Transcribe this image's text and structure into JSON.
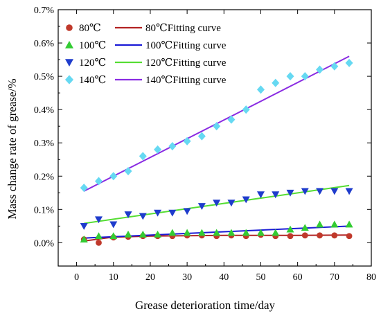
{
  "chart_data": {
    "type": "scatter",
    "xlabel": "Grease deterioration time/day",
    "ylabel": "Mass change rate of grease/%",
    "xlim": [
      -5,
      80
    ],
    "ylim": [
      -0.0007,
      0.007
    ],
    "xticks": [
      0,
      10,
      20,
      30,
      40,
      50,
      60,
      70,
      80
    ],
    "yticks": [
      0.0,
      0.001,
      0.002,
      0.003,
      0.004,
      0.005,
      0.006,
      0.007
    ],
    "yticklabels": [
      "0.0%",
      "0.1%",
      "0.2%",
      "0.3%",
      "0.4%",
      "0.5%",
      "0.6%",
      "0.7%"
    ],
    "legend_placement": "top-left",
    "series": [
      {
        "name": "80℃",
        "marker": "circle",
        "color": "#c0392b",
        "x": [
          2,
          6,
          10,
          14,
          18,
          22,
          26,
          30,
          34,
          38,
          42,
          46,
          50,
          54,
          58,
          62,
          66,
          70,
          74
        ],
        "y": [
          0.0001,
          0.0,
          0.00016,
          0.00018,
          0.0002,
          0.0002,
          0.0002,
          0.00022,
          0.00022,
          0.0002,
          0.00022,
          0.0002,
          0.00024,
          0.0002,
          0.0002,
          0.00022,
          0.00022,
          0.00022,
          0.0002
        ]
      },
      {
        "name": "100℃",
        "marker": "triangle-up",
        "color": "#33cc33",
        "x": [
          2,
          6,
          10,
          14,
          18,
          22,
          26,
          30,
          34,
          38,
          42,
          46,
          50,
          54,
          58,
          62,
          66,
          70,
          74
        ],
        "y": [
          0.0001,
          0.0002,
          0.0002,
          0.00025,
          0.00025,
          0.00025,
          0.0003,
          0.0003,
          0.0003,
          0.0003,
          0.0003,
          0.0003,
          0.0003,
          0.0003,
          0.0004,
          0.00045,
          0.00055,
          0.00055,
          0.00055
        ]
      },
      {
        "name": "120℃",
        "marker": "triangle-down",
        "color": "#1f3ccc",
        "x": [
          2,
          6,
          10,
          14,
          18,
          22,
          26,
          30,
          34,
          38,
          42,
          46,
          50,
          54,
          58,
          62,
          66,
          70,
          74
        ],
        "y": [
          0.0005,
          0.0007,
          0.00055,
          0.00085,
          0.0008,
          0.0009,
          0.0009,
          0.00095,
          0.0011,
          0.0012,
          0.0012,
          0.0013,
          0.00145,
          0.00145,
          0.0015,
          0.00155,
          0.00155,
          0.00155,
          0.00155
        ]
      },
      {
        "name": "140℃",
        "marker": "diamond",
        "color": "#66d9f2",
        "x": [
          2,
          6,
          10,
          14,
          18,
          22,
          26,
          30,
          34,
          38,
          42,
          46,
          50,
          54,
          58,
          62,
          66,
          70,
          74
        ],
        "y": [
          0.00165,
          0.00185,
          0.002,
          0.00215,
          0.0026,
          0.0028,
          0.0029,
          0.00305,
          0.0032,
          0.0035,
          0.0037,
          0.004,
          0.0046,
          0.0048,
          0.005,
          0.005,
          0.0052,
          0.0053,
          0.0054
        ]
      }
    ],
    "fitting_curves": [
      {
        "name": "80℃Fitting curve",
        "color": "#b22222",
        "x": [
          2,
          10,
          20,
          30,
          40,
          50,
          60,
          74
        ],
        "y": [
          5e-05,
          0.00017,
          0.0002,
          0.00021,
          0.00022,
          0.00022,
          0.00022,
          0.00023
        ]
      },
      {
        "name": "100℃Fitting curve",
        "color": "#1a1ad6",
        "x": [
          2,
          74
        ],
        "y": [
          0.00014,
          0.0005
        ]
      },
      {
        "name": "120℃Fitting curve",
        "color": "#55dd33",
        "x": [
          2,
          74
        ],
        "y": [
          0.00058,
          0.00172
        ]
      },
      {
        "name": "140℃Fitting curve",
        "color": "#8a2be2",
        "x": [
          2,
          74
        ],
        "y": [
          0.00155,
          0.0056
        ]
      }
    ]
  }
}
